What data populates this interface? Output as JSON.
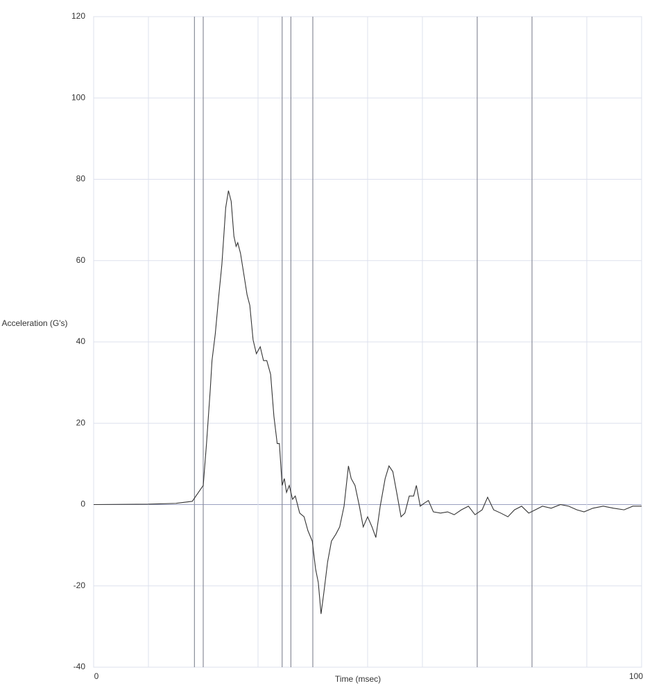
{
  "chart_data": {
    "type": "line",
    "ylabel": "Acceleration (G's)",
    "xlabel": "Time (msec)",
    "x": [
      0,
      10,
      15,
      18,
      20,
      20.6,
      21.3,
      21.6,
      22.2,
      22.8,
      23.4,
      24.1,
      24.6,
      25.1,
      25.6,
      26.0,
      26.3,
      26.8,
      27.5,
      28.0,
      28.5,
      29.1,
      29.7,
      30.4,
      31.0,
      31.6,
      32.3,
      32.9,
      33.5,
      33.9,
      34.4,
      34.8,
      35.2,
      35.7,
      36.3,
      36.8,
      37.6,
      38.4,
      39.1,
      39.9,
      40.5,
      41.0,
      41.5,
      42.0,
      42.7,
      43.4,
      44.2,
      44.9,
      45.7,
      46.5,
      47.0,
      47.7,
      48.5,
      49.2,
      50.0,
      50.8,
      51.5,
      52.3,
      53.2,
      53.9,
      54.6,
      55.3,
      56.1,
      56.8,
      57.6,
      58.4,
      58.9,
      59.6,
      60.4,
      61.1,
      62.0,
      63.3,
      64.6,
      65.8,
      67.1,
      68.4,
      69.6,
      70.9,
      71.9,
      73.0,
      74.3,
      75.6,
      76.8,
      78.1,
      79.4,
      80.6,
      81.9,
      83.5,
      85.2,
      86.7,
      88.2,
      89.5,
      91.1,
      93.0,
      94.9,
      96.8,
      98.4,
      100
    ],
    "series": [
      {
        "color": "#333333",
        "values": [
          0,
          0.1,
          0.3,
          0.8,
          4.7,
          15,
          28.6,
          35.4,
          42,
          50.8,
          59,
          73,
          77.2,
          74.6,
          66,
          63.5,
          64.4,
          61.8,
          55.9,
          51.6,
          49,
          40.5,
          37.1,
          38.8,
          35.4,
          35.4,
          32,
          21.7,
          15,
          15,
          4.7,
          6.4,
          3,
          4.7,
          1.3,
          2.1,
          -2.1,
          -3,
          -6.4,
          -9,
          -15.8,
          -19.2,
          -26.9,
          -21.8,
          -14.1,
          -9,
          -7.3,
          -5.5,
          -0.4,
          9.5,
          6.4,
          4.7,
          -0.4,
          -5.5,
          -3,
          -5.5,
          -8.1,
          -0.4,
          6.4,
          9.5,
          8.1,
          3,
          -3,
          -2.1,
          2.1,
          2.1,
          4.7,
          -0.4,
          0.4,
          1,
          -1.8,
          -2.1,
          -1.8,
          -2.5,
          -1.3,
          -0.4,
          -2.5,
          -1.3,
          1.8,
          -1.3,
          -2.1,
          -3,
          -1.3,
          -0.4,
          -2.1,
          -1.3,
          -0.4,
          -0.9,
          0,
          -0.4,
          -1.3,
          -1.8,
          -0.9,
          -0.4,
          -0.9,
          -1.3,
          -0.4,
          -0.4
        ]
      }
    ],
    "xlim": [
      0,
      100
    ],
    "xticks": [
      0,
      100
    ],
    "xminor": [
      10,
      20,
      30,
      40,
      50,
      60,
      70,
      80,
      90
    ],
    "markers": [
      18.4,
      20,
      34.4,
      36,
      40,
      70,
      80
    ],
    "ylim": [
      -40,
      120
    ],
    "yticks": [
      -40,
      -20,
      0,
      20,
      40,
      60,
      80,
      100,
      120
    ],
    "grid": true
  }
}
